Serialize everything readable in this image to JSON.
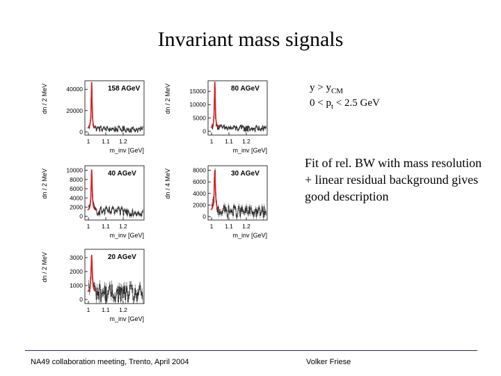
{
  "slide": {
    "title": "Invariant mass signals",
    "kinematics": {
      "rapidity": {
        "var": "y",
        "op": ">",
        "sym": "y",
        "sub": "CM"
      },
      "pt": {
        "lo": "0 <",
        "var": "p",
        "sub": "t",
        "hi": "< 2.5 GeV"
      }
    },
    "description": "Fit of rel. BW with mass resolution + linear residual background gives good description",
    "footer_left": "NA49 collaboration meeting, Trento, April 2004",
    "footer_right": "Volker Friese"
  },
  "colors": {
    "data": "#222222",
    "fit": "#d42020",
    "axes": "#000000"
  },
  "chart_data": [
    {
      "type": "line",
      "title": "158 AGeV",
      "ylabel": "dn / 2 MeV",
      "xlabel": "m_inv [GeV]",
      "xlim": [
        0.98,
        1.32
      ],
      "ylim": [
        -3000,
        48000
      ],
      "yticks": [
        0,
        20000,
        40000
      ],
      "ytick_labels": [
        "0",
        "20000",
        "40000"
      ],
      "xticks": [
        1.0,
        1.1,
        1.2
      ],
      "xtick_labels": [
        "1",
        "1.1",
        "1.2"
      ],
      "peak": {
        "mass": 1.019,
        "height": 44000,
        "width": 0.006
      },
      "background": 3000,
      "noise": 2500,
      "series": [
        {
          "values_from": "peak"
        },
        {
          "name": "",
          "kind": "fit"
        }
      ]
    },
    {
      "type": "line",
      "title": "80 AGeV",
      "ylabel": "dn / 2 MeV",
      "xlabel": "m_inv [GeV]",
      "xlim": [
        0.98,
        1.32
      ],
      "ylim": [
        -1500,
        19000
      ],
      "yticks": [
        0,
        5000,
        10000,
        15000
      ],
      "ytick_labels": [
        "0",
        "5000",
        "10000",
        "15000"
      ],
      "xticks": [
        1.0,
        1.1,
        1.2
      ],
      "xtick_labels": [
        "1",
        "1.1",
        "1.2"
      ],
      "peak": {
        "mass": 1.019,
        "height": 17500,
        "width": 0.006
      },
      "background": 1200,
      "noise": 1100,
      "series": [
        {
          "values_from": "peak"
        },
        {
          "name": "",
          "kind": "fit"
        }
      ]
    },
    {
      "type": "line",
      "title": "40 AGeV",
      "ylabel": "dn / 2 MeV",
      "xlabel": "m_inv [GeV]",
      "xlim": [
        0.98,
        1.32
      ],
      "ylim": [
        -800,
        11000
      ],
      "yticks": [
        0,
        2000,
        4000,
        6000,
        8000,
        10000
      ],
      "ytick_labels": [
        "0",
        "2000",
        "4000",
        "6000",
        "8000",
        "10000"
      ],
      "xticks": [
        1.0,
        1.1,
        1.2
      ],
      "xtick_labels": [
        "1",
        "1.1",
        "1.2"
      ],
      "peak": {
        "mass": 1.019,
        "height": 9000,
        "width": 0.007
      },
      "background": 1200,
      "noise": 900,
      "series": [
        {
          "values_from": "peak"
        },
        {
          "name": "",
          "kind": "fit"
        }
      ]
    },
    {
      "type": "line",
      "title": "30 AGeV",
      "ylabel": "dn / 4 MeV",
      "xlabel": "m_inv [GeV]",
      "xlim": [
        0.98,
        1.32
      ],
      "ylim": [
        -600,
        8800
      ],
      "yticks": [
        0,
        2000,
        4000,
        6000,
        8000
      ],
      "ytick_labels": [
        "0",
        "2000",
        "4000",
        "6000",
        "8000"
      ],
      "xticks": [
        1.0,
        1.1,
        1.2
      ],
      "xtick_labels": [
        "1",
        "1.1",
        "1.2"
      ],
      "peak": {
        "mass": 1.019,
        "height": 7000,
        "width": 0.008
      },
      "background": 1000,
      "noise": 1000,
      "series": [
        {
          "values_from": "peak"
        },
        {
          "name": "",
          "kind": "fit"
        }
      ]
    },
    {
      "type": "line",
      "title": "20 AGeV",
      "ylabel": "dn / 2 MeV",
      "xlabel": "m_inv [GeV]",
      "xlim": [
        0.98,
        1.32
      ],
      "ylim": [
        -300,
        3600
      ],
      "yticks": [
        0,
        1000,
        2000,
        3000
      ],
      "ytick_labels": [
        "0",
        "1000",
        "2000",
        "3000"
      ],
      "xticks": [
        1.0,
        1.1,
        1.2
      ],
      "xtick_labels": [
        "1",
        "1.1",
        "1.2"
      ],
      "peak": {
        "mass": 1.019,
        "height": 2700,
        "width": 0.008
      },
      "background": 500,
      "noise": 650,
      "series": [
        {
          "values_from": "peak"
        },
        {
          "name": "",
          "kind": "fit"
        }
      ]
    }
  ]
}
